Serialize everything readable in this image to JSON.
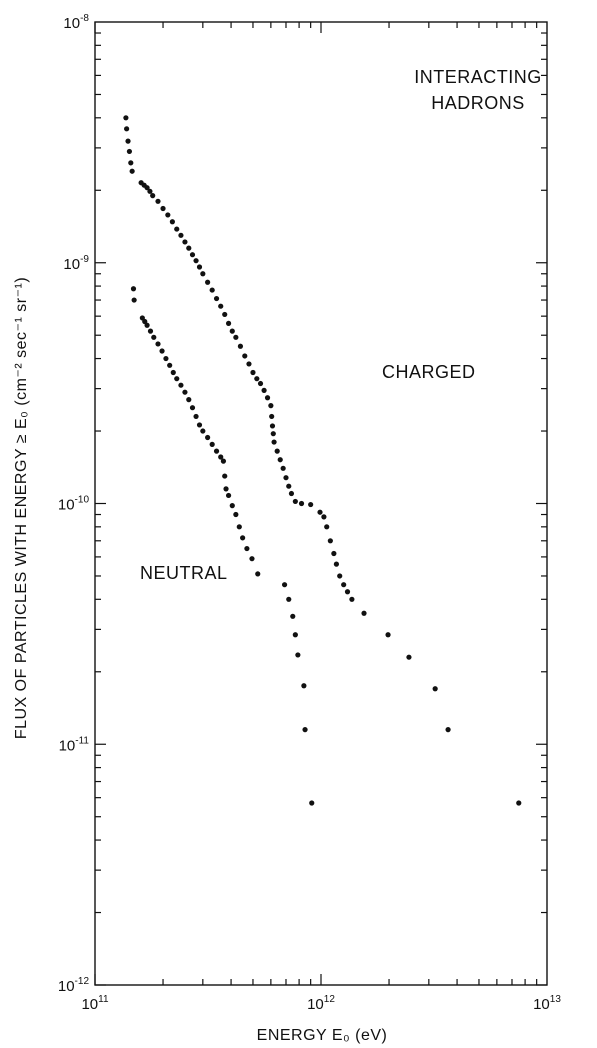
{
  "chart_data": {
    "type": "scatter",
    "title": "",
    "xlabel": "ENERGY E₀ (eV)",
    "ylabel": "FLUX OF PARTICLES WITH ENERGY ≥ E₀ (cm⁻² sec⁻¹ sr⁻¹)",
    "xscale": "log",
    "yscale": "log",
    "xlim": [
      100000000000.0,
      10000000000000.0
    ],
    "ylim": [
      1e-12,
      1e-08
    ],
    "x_ticks": [
      {
        "base": "10",
        "exp": "11"
      },
      {
        "base": "10",
        "exp": "12"
      },
      {
        "base": "10",
        "exp": "13"
      }
    ],
    "y_ticks": [
      {
        "base": "10",
        "exp": "-12"
      },
      {
        "base": "10",
        "exp": "-11"
      },
      {
        "base": "10",
        "exp": "-10"
      },
      {
        "base": "10",
        "exp": "-9"
      },
      {
        "base": "10",
        "exp": "-8"
      }
    ],
    "grid": false,
    "annotations": [
      "INTERACTING",
      "HADRONS"
    ],
    "series": [
      {
        "name": "CHARGED",
        "points": [
          [
            137000000000.0,
            4e-09
          ],
          [
            138000000000.0,
            3.6e-09
          ],
          [
            140000000000.0,
            3.2e-09
          ],
          [
            142000000000.0,
            2.9e-09
          ],
          [
            144000000000.0,
            2.6e-09
          ],
          [
            146000000000.0,
            2.4e-09
          ],
          [
            160000000000.0,
            2.15e-09
          ],
          [
            165000000000.0,
            2.1e-09
          ],
          [
            170000000000.0,
            2.05e-09
          ],
          [
            175000000000.0,
            1.98e-09
          ],
          [
            180000000000.0,
            1.9e-09
          ],
          [
            190000000000.0,
            1.8e-09
          ],
          [
            200000000000.0,
            1.68e-09
          ],
          [
            210000000000.0,
            1.58e-09
          ],
          [
            220000000000.0,
            1.48e-09
          ],
          [
            230000000000.0,
            1.38e-09
          ],
          [
            240000000000.0,
            1.3e-09
          ],
          [
            250000000000.0,
            1.22e-09
          ],
          [
            260000000000.0,
            1.15e-09
          ],
          [
            270000000000.0,
            1.08e-09
          ],
          [
            280000000000.0,
            1.02e-09
          ],
          [
            290000000000.0,
            9.6e-10
          ],
          [
            300000000000.0,
            9e-10
          ],
          [
            315000000000.0,
            8.3e-10
          ],
          [
            330000000000.0,
            7.7e-10
          ],
          [
            345000000000.0,
            7.1e-10
          ],
          [
            360000000000.0,
            6.6e-10
          ],
          [
            375000000000.0,
            6.1e-10
          ],
          [
            390000000000.0,
            5.6e-10
          ],
          [
            405000000000.0,
            5.2e-10
          ],
          [
            420000000000.0,
            4.9e-10
          ],
          [
            440000000000.0,
            4.5e-10
          ],
          [
            460000000000.0,
            4.1e-10
          ],
          [
            480000000000.0,
            3.8e-10
          ],
          [
            500000000000.0,
            3.5e-10
          ],
          [
            520000000000.0,
            3.3e-10
          ],
          [
            540000000000.0,
            3.15e-10
          ],
          [
            560000000000.0,
            2.95e-10
          ],
          [
            580000000000.0,
            2.75e-10
          ],
          [
            600000000000.0,
            2.55e-10
          ],
          [
            605000000000.0,
            2.3e-10
          ],
          [
            610000000000.0,
            2.1e-10
          ],
          [
            615000000000.0,
            1.95e-10
          ],
          [
            620000000000.0,
            1.8e-10
          ],
          [
            640000000000.0,
            1.65e-10
          ],
          [
            660000000000.0,
            1.52e-10
          ],
          [
            680000000000.0,
            1.4e-10
          ],
          [
            700000000000.0,
            1.28e-10
          ],
          [
            720000000000.0,
            1.18e-10
          ],
          [
            740000000000.0,
            1.1e-10
          ],
          [
            770000000000.0,
            1.02e-10
          ],
          [
            820000000000.0,
            1e-10
          ],
          [
            900000000000.0,
            9.9e-11
          ],
          [
            990000000000.0,
            9.2e-11
          ],
          [
            1030000000000.0,
            8.8e-11
          ],
          [
            1060000000000.0,
            8e-11
          ],
          [
            1100000000000.0,
            7e-11
          ],
          [
            1140000000000.0,
            6.2e-11
          ],
          [
            1170000000000.0,
            5.6e-11
          ],
          [
            1210000000000.0,
            5e-11
          ],
          [
            1260000000000.0,
            4.6e-11
          ],
          [
            1310000000000.0,
            4.3e-11
          ],
          [
            1370000000000.0,
            4e-11
          ],
          [
            1550000000000.0,
            3.5e-11
          ],
          [
            1980000000000.0,
            2.85e-11
          ],
          [
            2450000000000.0,
            2.3e-11
          ],
          [
            3200000000000.0,
            1.7e-11
          ],
          [
            3650000000000.0,
            1.15e-11
          ],
          [
            7500000000000.0,
            5.7e-12
          ]
        ]
      },
      {
        "name": "NEUTRAL",
        "points": [
          [
            148000000000.0,
            7.8e-10
          ],
          [
            149000000000.0,
            7e-10
          ],
          [
            162000000000.0,
            5.9e-10
          ],
          [
            166000000000.0,
            5.7e-10
          ],
          [
            170000000000.0,
            5.5e-10
          ],
          [
            176000000000.0,
            5.2e-10
          ],
          [
            182000000000.0,
            4.9e-10
          ],
          [
            190000000000.0,
            4.6e-10
          ],
          [
            198000000000.0,
            4.3e-10
          ],
          [
            206000000000.0,
            4e-10
          ],
          [
            214000000000.0,
            3.75e-10
          ],
          [
            222000000000.0,
            3.5e-10
          ],
          [
            230000000000.0,
            3.3e-10
          ],
          [
            240000000000.0,
            3.1e-10
          ],
          [
            250000000000.0,
            2.9e-10
          ],
          [
            260000000000.0,
            2.7e-10
          ],
          [
            270000000000.0,
            2.5e-10
          ],
          [
            280000000000.0,
            2.3e-10
          ],
          [
            290000000000.0,
            2.12e-10
          ],
          [
            300000000000.0,
            2e-10
          ],
          [
            315000000000.0,
            1.88e-10
          ],
          [
            330000000000.0,
            1.76e-10
          ],
          [
            345000000000.0,
            1.65e-10
          ],
          [
            360000000000.0,
            1.56e-10
          ],
          [
            370000000000.0,
            1.5e-10
          ],
          [
            375000000000.0,
            1.3e-10
          ],
          [
            380000000000.0,
            1.15e-10
          ],
          [
            390000000000.0,
            1.08e-10
          ],
          [
            405000000000.0,
            9.8e-11
          ],
          [
            420000000000.0,
            9e-11
          ],
          [
            435000000000.0,
            8e-11
          ],
          [
            450000000000.0,
            7.2e-11
          ],
          [
            470000000000.0,
            6.5e-11
          ],
          [
            495000000000.0,
            5.9e-11
          ],
          [
            525000000000.0,
            5.1e-11
          ],
          [
            690000000000.0,
            4.6e-11
          ],
          [
            720000000000.0,
            4e-11
          ],
          [
            750000000000.0,
            3.4e-11
          ],
          [
            770000000000.0,
            2.85e-11
          ],
          [
            790000000000.0,
            2.35e-11
          ],
          [
            840000000000.0,
            1.75e-11
          ],
          [
            850000000000.0,
            1.15e-11
          ],
          [
            910000000000.0,
            5.7e-12
          ]
        ]
      }
    ]
  }
}
